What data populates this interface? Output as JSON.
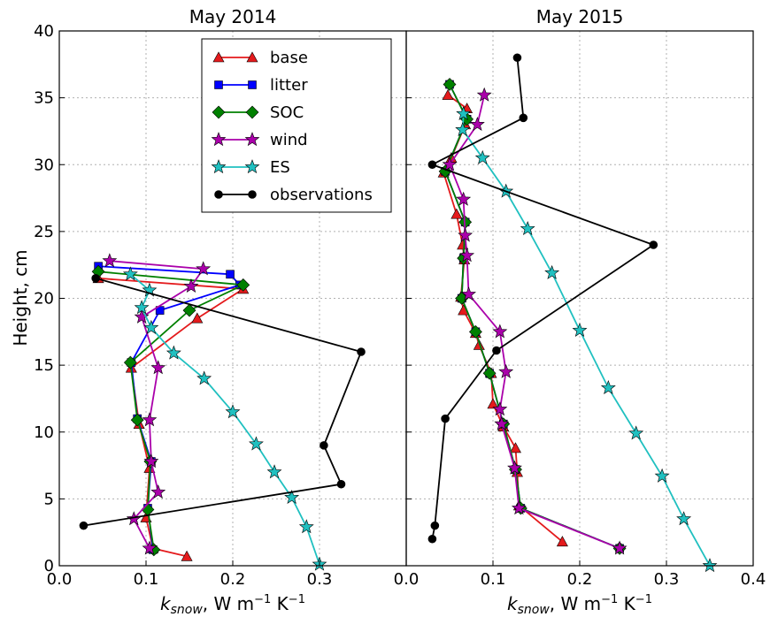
{
  "chart_data": {
    "type": "line",
    "ylabel": "Height, cm",
    "ylim": [
      0,
      40
    ],
    "yticks": [
      "0",
      "5",
      "10",
      "15",
      "20",
      "25",
      "30",
      "35",
      "40"
    ],
    "grid": true,
    "legend_placement": "top-right of left panel",
    "legend": [
      {
        "name": "base",
        "color": "#e41a1c",
        "marker": "triangle"
      },
      {
        "name": "litter",
        "color": "#0000ff",
        "marker": "square"
      },
      {
        "name": "SOC",
        "color": "#008000",
        "marker": "diamond"
      },
      {
        "name": "wind",
        "color": "#aa00aa",
        "marker": "star"
      },
      {
        "name": "ES",
        "color": "#20c0c0",
        "marker": "star"
      },
      {
        "name": "observations",
        "color": "#000000",
        "marker": "circle"
      }
    ],
    "panels": [
      {
        "title": "May 2014",
        "xlabel_main": "k",
        "xlabel_sub": "snow",
        "xlabel_rest": ", W m",
        "xlabel_sup1": "−1",
        "xlabel_k": " K",
        "xlabel_sup2": "−1",
        "xlim": [
          0.0,
          0.4
        ],
        "xticks": [
          "0.0",
          "0.1",
          "0.2",
          "0.3"
        ],
        "series": [
          {
            "name": "base",
            "points": [
              [
                0.147,
                0.7
              ],
              [
                0.108,
                1.3
              ],
              [
                0.1,
                3.6
              ],
              [
                0.104,
                7.3
              ],
              [
                0.092,
                10.6
              ],
              [
                0.083,
                14.8
              ],
              [
                0.159,
                18.5
              ],
              [
                0.212,
                20.7
              ],
              [
                0.045,
                21.5
              ]
            ]
          },
          {
            "name": "litter",
            "points": [
              [
                0.108,
                1.2
              ],
              [
                0.102,
                4.3
              ],
              [
                0.106,
                7.8
              ],
              [
                0.09,
                11.0
              ],
              [
                0.083,
                15.2
              ],
              [
                0.116,
                19.1
              ],
              [
                0.208,
                21.0
              ],
              [
                0.197,
                21.8
              ],
              [
                0.045,
                22.4
              ]
            ]
          },
          {
            "name": "SOC",
            "points": [
              [
                0.109,
                1.2
              ],
              [
                0.102,
                4.2
              ],
              [
                0.105,
                7.8
              ],
              [
                0.09,
                10.9
              ],
              [
                0.082,
                15.2
              ],
              [
                0.15,
                19.1
              ],
              [
                0.212,
                21.0
              ],
              [
                0.045,
                22.0
              ]
            ]
          },
          {
            "name": "wind",
            "points": [
              [
                0.104,
                1.3
              ],
              [
                0.086,
                3.5
              ],
              [
                0.114,
                5.5
              ],
              [
                0.106,
                7.8
              ],
              [
                0.104,
                10.9
              ],
              [
                0.114,
                14.8
              ],
              [
                0.095,
                18.6
              ],
              [
                0.152,
                20.9
              ],
              [
                0.166,
                22.2
              ],
              [
                0.058,
                22.8
              ]
            ]
          },
          {
            "name": "ES",
            "points": [
              [
                0.3,
                0.1
              ],
              [
                0.285,
                2.9
              ],
              [
                0.268,
                5.1
              ],
              [
                0.248,
                7.0
              ],
              [
                0.227,
                9.1
              ],
              [
                0.2,
                11.5
              ],
              [
                0.167,
                14.0
              ],
              [
                0.132,
                15.9
              ],
              [
                0.106,
                17.8
              ],
              [
                0.095,
                19.3
              ],
              [
                0.104,
                20.6
              ],
              [
                0.082,
                21.8
              ]
            ]
          },
          {
            "name": "observations",
            "points": [
              [
                0.028,
                3.0
              ],
              [
                0.325,
                6.1
              ],
              [
                0.305,
                9.0
              ],
              [
                0.348,
                16.0
              ],
              [
                0.042,
                21.5
              ]
            ]
          }
        ]
      },
      {
        "title": "May 2015",
        "xlabel_main": "k",
        "xlabel_sub": "snow",
        "xlabel_rest": ", W m",
        "xlabel_sup1": "−1",
        "xlabel_k": " K",
        "xlabel_sup2": "−1",
        "xlim": [
          0.0,
          0.4
        ],
        "xticks": [
          "0.0",
          "0.1",
          "0.2",
          "0.3",
          "0.4"
        ],
        "series": [
          {
            "name": "base",
            "points": [
              [
                0.18,
                1.8
              ],
              [
                0.13,
                4.5
              ],
              [
                0.128,
                7.0
              ],
              [
                0.126,
                8.8
              ],
              [
                0.112,
                10.4
              ],
              [
                0.1,
                12.1
              ],
              [
                0.098,
                14.4
              ],
              [
                0.084,
                16.5
              ],
              [
                0.08,
                17.4
              ],
              [
                0.066,
                19.1
              ],
              [
                0.063,
                20.1
              ],
              [
                0.067,
                22.9
              ],
              [
                0.065,
                24.0
              ],
              [
                0.058,
                26.3
              ],
              [
                0.043,
                29.4
              ],
              [
                0.052,
                30.5
              ],
              [
                0.068,
                33.0
              ],
              [
                0.07,
                34.2
              ],
              [
                0.048,
                35.2
              ]
            ]
          },
          {
            "name": "litter",
            "points": [
              [
                0.246,
                1.3
              ],
              [
                0.132,
                4.3
              ],
              [
                0.126,
                7.2
              ],
              [
                0.112,
                10.6
              ],
              [
                0.096,
                14.4
              ],
              [
                0.08,
                17.5
              ],
              [
                0.064,
                20.0
              ],
              [
                0.066,
                23.0
              ],
              [
                0.068,
                25.7
              ],
              [
                0.045,
                29.5
              ],
              [
                0.07,
                33.4
              ],
              [
                0.05,
                36.0
              ]
            ]
          },
          {
            "name": "SOC",
            "points": [
              [
                0.246,
                1.3
              ],
              [
                0.132,
                4.3
              ],
              [
                0.126,
                7.2
              ],
              [
                0.112,
                10.6
              ],
              [
                0.096,
                14.4
              ],
              [
                0.08,
                17.5
              ],
              [
                0.064,
                20.0
              ],
              [
                0.066,
                23.0
              ],
              [
                0.068,
                25.7
              ],
              [
                0.045,
                29.5
              ],
              [
                0.07,
                33.4
              ],
              [
                0.05,
                36.0
              ]
            ]
          },
          {
            "name": "wind",
            "points": [
              [
                0.246,
                1.3
              ],
              [
                0.13,
                4.3
              ],
              [
                0.125,
                7.3
              ],
              [
                0.11,
                10.6
              ],
              [
                0.108,
                11.7
              ],
              [
                0.115,
                14.5
              ],
              [
                0.108,
                17.5
              ],
              [
                0.072,
                20.3
              ],
              [
                0.07,
                23.2
              ],
              [
                0.068,
                24.7
              ],
              [
                0.066,
                27.4
              ],
              [
                0.05,
                30.0
              ],
              [
                0.082,
                33.0
              ],
              [
                0.09,
                35.2
              ]
            ]
          },
          {
            "name": "ES",
            "points": [
              [
                0.35,
                0.0
              ],
              [
                0.32,
                3.5
              ],
              [
                0.295,
                6.7
              ],
              [
                0.265,
                9.9
              ],
              [
                0.233,
                13.3
              ],
              [
                0.2,
                17.6
              ],
              [
                0.168,
                21.9
              ],
              [
                0.14,
                25.2
              ],
              [
                0.115,
                28.0
              ],
              [
                0.088,
                30.5
              ],
              [
                0.065,
                32.6
              ],
              [
                0.066,
                33.8
              ]
            ]
          },
          {
            "name": "observations",
            "points": [
              [
                0.03,
                2.0
              ],
              [
                0.033,
                3.0
              ],
              [
                0.045,
                11.0
              ],
              [
                0.104,
                16.1
              ],
              [
                0.285,
                24.0
              ],
              [
                0.03,
                30.0
              ],
              [
                0.135,
                33.5
              ],
              [
                0.128,
                38.0
              ]
            ]
          }
        ]
      }
    ]
  }
}
